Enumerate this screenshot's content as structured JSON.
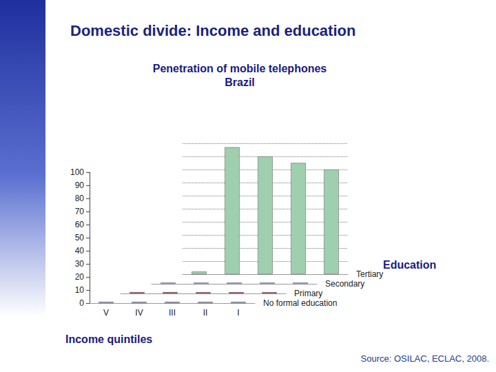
{
  "heading": "Domestic divide: Income and education",
  "source": "Source: OSILAC, ECLAC, 2008.",
  "chart_data": {
    "type": "bar",
    "title": "Penetration of mobile telephones",
    "subtitle": "Brazil",
    "xlabel": "Income quintiles",
    "series_label": "Education",
    "categories": [
      "V",
      "IV",
      "III",
      "II",
      "I"
    ],
    "series": [
      {
        "name": "No formal education",
        "color": "#9999cc",
        "values": [
          1,
          1,
          1,
          1,
          1
        ]
      },
      {
        "name": "Primary",
        "color": "#993366",
        "values": [
          1,
          1,
          1,
          1,
          1
        ]
      },
      {
        "name": "Secondary",
        "color": "#b3b3e6",
        "values": [
          1,
          1,
          1,
          1,
          1
        ]
      },
      {
        "name": "Tertiary",
        "color": "#9fcfae",
        "values": [
          2,
          97,
          90,
          85,
          80
        ]
      }
    ],
    "ylim": [
      0,
      100
    ],
    "yticks": [
      0,
      10,
      20,
      30,
      40,
      50,
      60,
      70,
      80,
      90,
      100
    ],
    "grid": true
  }
}
